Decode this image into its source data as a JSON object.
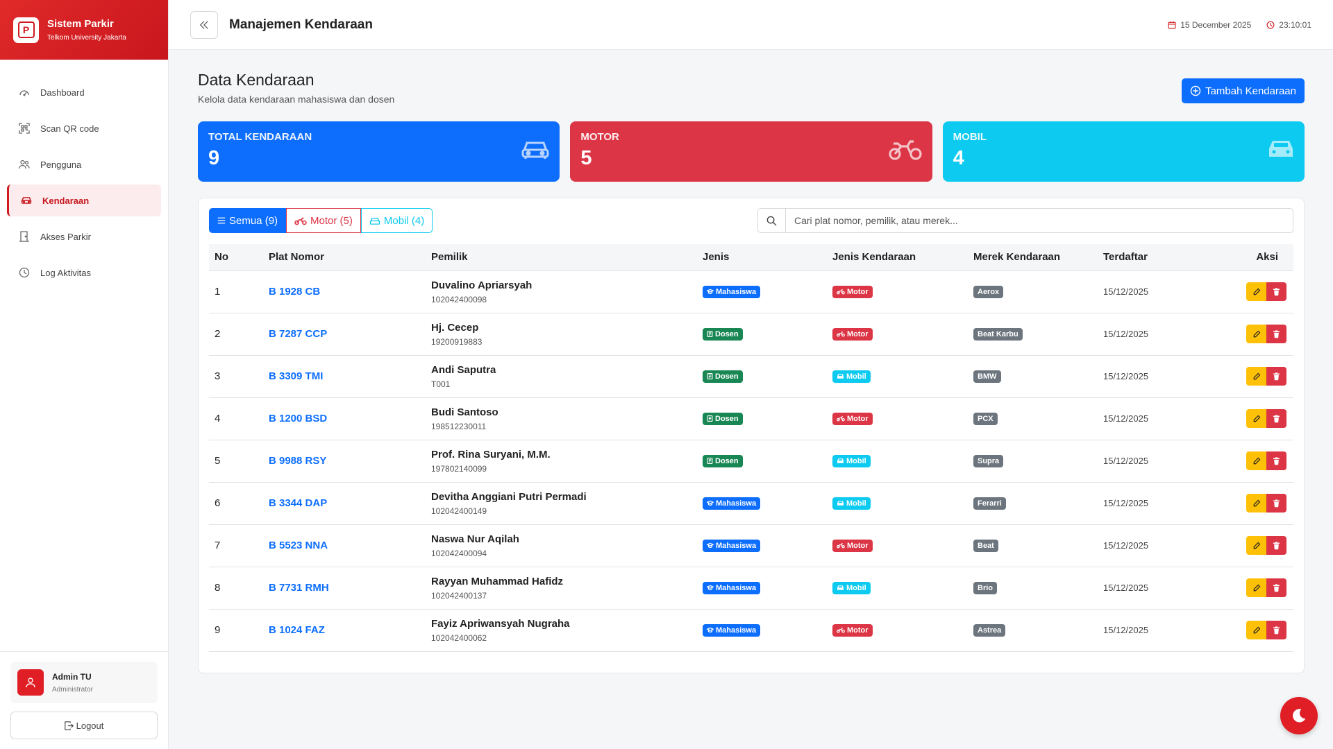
{
  "brand": {
    "title": "Sistem Parkir",
    "subtitle": "Telkom University Jakarta",
    "logo_letter": "P"
  },
  "sidebar": {
    "items": [
      {
        "label": "Dashboard",
        "icon": "gauge-icon"
      },
      {
        "label": "Scan QR code",
        "icon": "qr-scan-icon"
      },
      {
        "label": "Pengguna",
        "icon": "users-icon"
      },
      {
        "label": "Kendaraan",
        "icon": "car-icon",
        "active": true
      },
      {
        "label": "Akses Parkir",
        "icon": "door-icon"
      },
      {
        "label": "Log Aktivitas",
        "icon": "clock-icon"
      }
    ],
    "user": {
      "name": "Admin TU",
      "role": "Administrator"
    },
    "logout_label": "Logout"
  },
  "header": {
    "title": "Manajemen Kendaraan",
    "date": "15 December 2025",
    "time": "23:10:01"
  },
  "main": {
    "title": "Data Kendaraan",
    "subtitle": "Kelola data kendaraan mahasiswa dan dosen",
    "add_button": "Tambah Kendaraan"
  },
  "stats": {
    "total": {
      "label": "TOTAL KENDARAAN",
      "value": "9"
    },
    "motor": {
      "label": "MOTOR",
      "value": "5"
    },
    "mobil": {
      "label": "MOBIL",
      "value": "4"
    }
  },
  "filters": {
    "all": "Semua (9)",
    "motor": "Motor (5)",
    "mobil": "Mobil (4)"
  },
  "search": {
    "placeholder": "Cari plat nomor, pemilik, atau merek..."
  },
  "table": {
    "headers": [
      "No",
      "Plat Nomor",
      "Pemilik",
      "Jenis",
      "Jenis Kendaraan",
      "Merek Kendaraan",
      "Terdaftar",
      "Aksi"
    ],
    "rows": [
      {
        "no": "1",
        "plat": "B 1928 CB",
        "owner": "Duvalino Apriarsyah",
        "owner_id": "102042400098",
        "jenis": "Mahasiswa",
        "kendaraan": "Motor",
        "merek": "Aerox",
        "tanggal": "15/12/2025"
      },
      {
        "no": "2",
        "plat": "B 7287 CCP",
        "owner": "Hj. Cecep",
        "owner_id": "19200919883",
        "jenis": "Dosen",
        "kendaraan": "Motor",
        "merek": "Beat Karbu",
        "tanggal": "15/12/2025"
      },
      {
        "no": "3",
        "plat": "B 3309 TMI",
        "owner": "Andi Saputra",
        "owner_id": "T001",
        "jenis": "Dosen",
        "kendaraan": "Mobil",
        "merek": "BMW",
        "tanggal": "15/12/2025"
      },
      {
        "no": "4",
        "plat": "B 1200 BSD",
        "owner": "Budi Santoso",
        "owner_id": "198512230011",
        "jenis": "Dosen",
        "kendaraan": "Motor",
        "merek": "PCX",
        "tanggal": "15/12/2025"
      },
      {
        "no": "5",
        "plat": "B 9988 RSY",
        "owner": "Prof. Rina Suryani, M.M.",
        "owner_id": "197802140099",
        "jenis": "Dosen",
        "kendaraan": "Mobil",
        "merek": "Supra",
        "tanggal": "15/12/2025"
      },
      {
        "no": "6",
        "plat": "B 3344 DAP",
        "owner": "Devitha Anggiani Putri Permadi",
        "owner_id": "102042400149",
        "jenis": "Mahasiswa",
        "kendaraan": "Mobil",
        "merek": "Ferarri",
        "tanggal": "15/12/2025"
      },
      {
        "no": "7",
        "plat": "B 5523 NNA",
        "owner": "Naswa Nur Aqilah",
        "owner_id": "102042400094",
        "jenis": "Mahasiswa",
        "kendaraan": "Motor",
        "merek": "Beat",
        "tanggal": "15/12/2025"
      },
      {
        "no": "8",
        "plat": "B 7731 RMH",
        "owner": "Rayyan Muhammad Hafidz",
        "owner_id": "102042400137",
        "jenis": "Mahasiswa",
        "kendaraan": "Mobil",
        "merek": "Brio",
        "tanggal": "15/12/2025"
      },
      {
        "no": "9",
        "plat": "B 1024 FAZ",
        "owner": "Fayiz Apriwansyah Nugraha",
        "owner_id": "102042400062",
        "jenis": "Mahasiswa",
        "kendaraan": "Motor",
        "merek": "Astrea",
        "tanggal": "15/12/2025"
      }
    ]
  },
  "colors": {
    "brand": "#d11a1f",
    "primary": "#0d6efd",
    "danger": "#dc3545",
    "info": "#0dcaf0",
    "success": "#198754",
    "warning": "#ffc107",
    "secondary": "#6c757d"
  }
}
